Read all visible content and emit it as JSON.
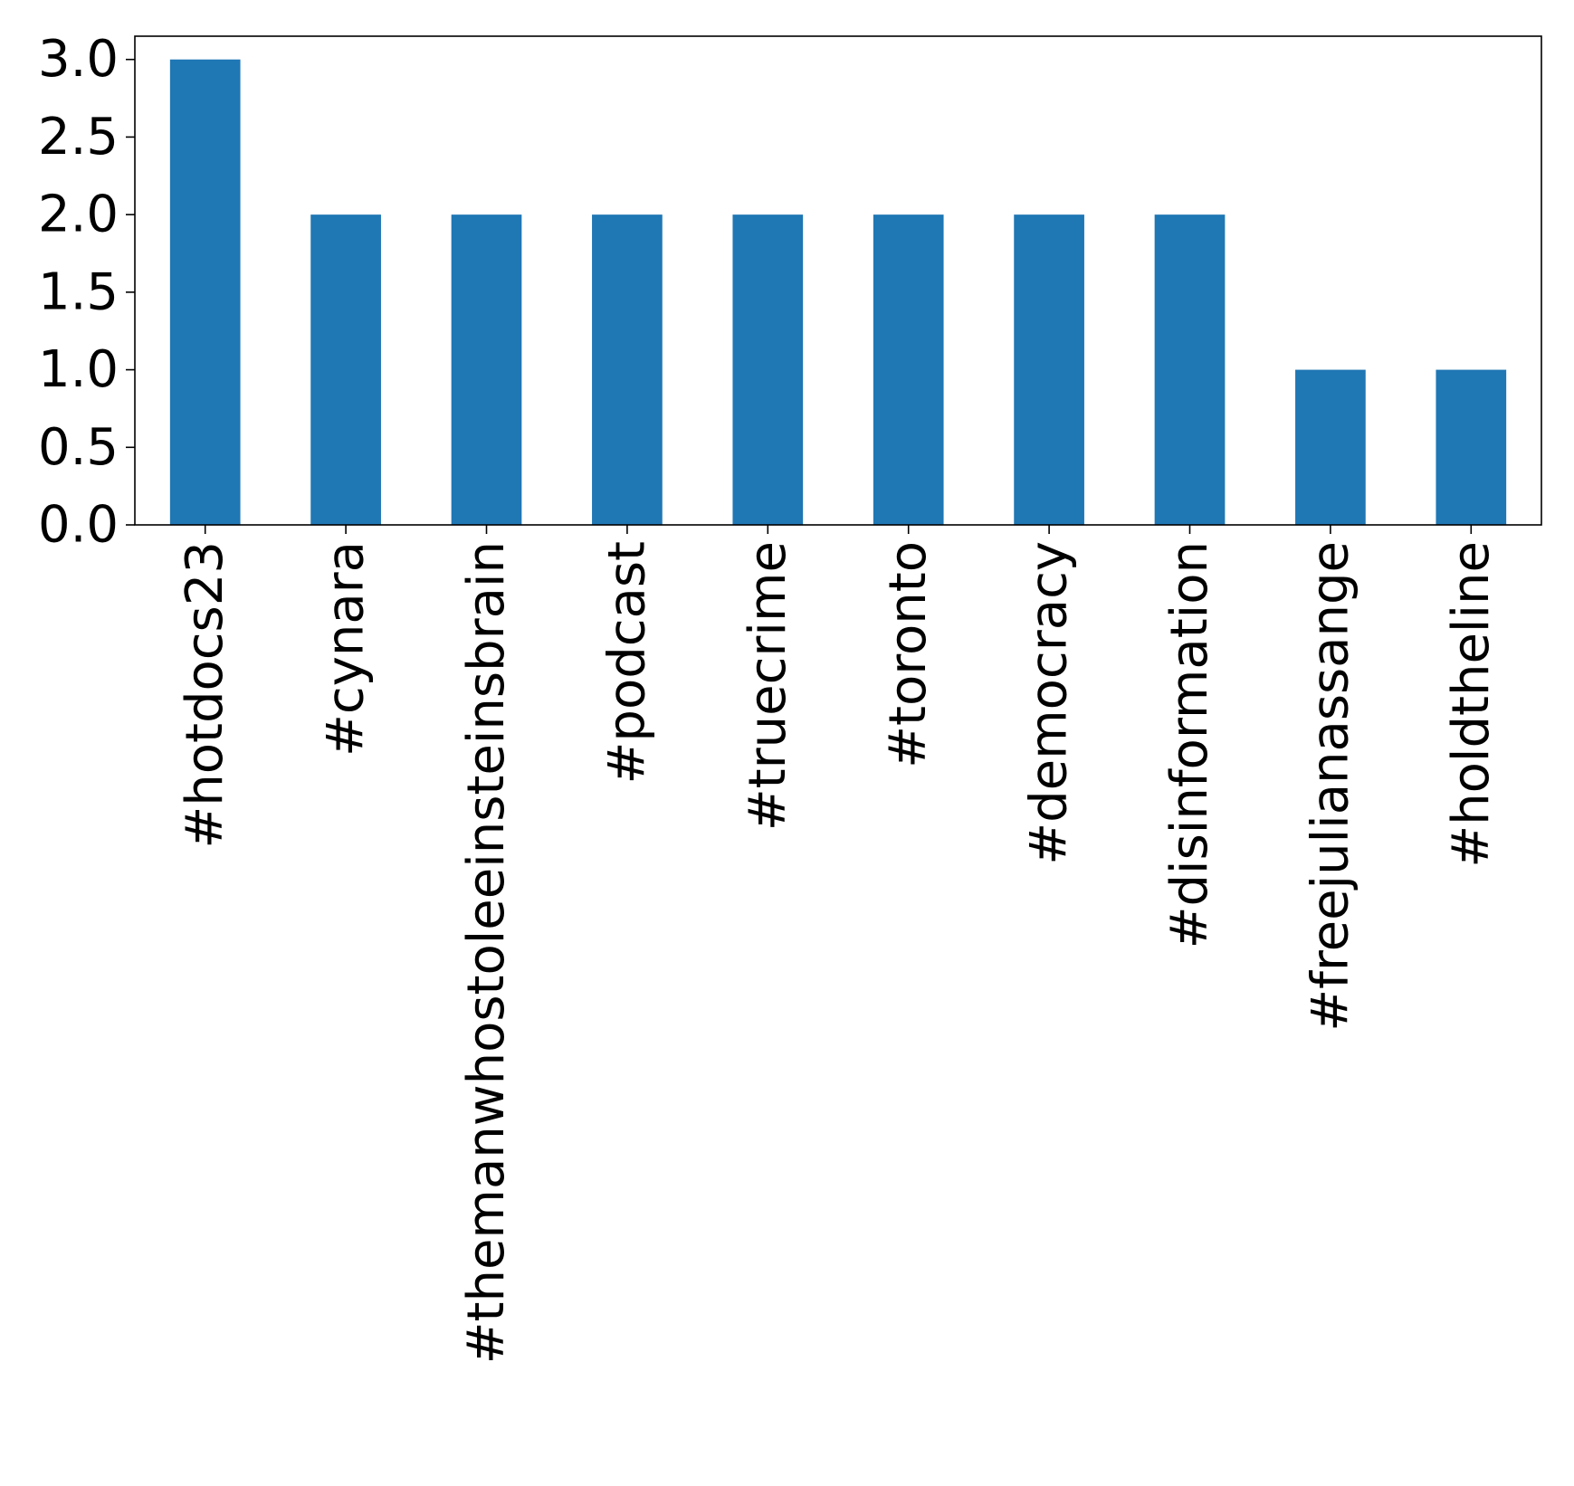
{
  "chart_data": {
    "type": "bar",
    "title": "",
    "xlabel": "",
    "ylabel": "",
    "categories": [
      "#hotdocs23",
      "#cynara",
      "#themanwhostoleeinsteinsbrain",
      "#podcast",
      "#truecrime",
      "#toronto",
      "#democracy",
      "#disinformation",
      "#freejulianassange",
      "#holdtheline"
    ],
    "values": [
      3,
      2,
      2,
      2,
      2,
      2,
      2,
      2,
      1,
      1
    ],
    "ylim": [
      0,
      3.15
    ],
    "yticks": [
      0.0,
      0.5,
      1.0,
      1.5,
      2.0,
      2.5,
      3.0
    ],
    "ytick_labels": [
      "0.0",
      "0.5",
      "1.0",
      "1.5",
      "2.0",
      "2.5",
      "3.0"
    ],
    "bar_color": "#1f77b4",
    "grid": false,
    "legend": "none"
  }
}
